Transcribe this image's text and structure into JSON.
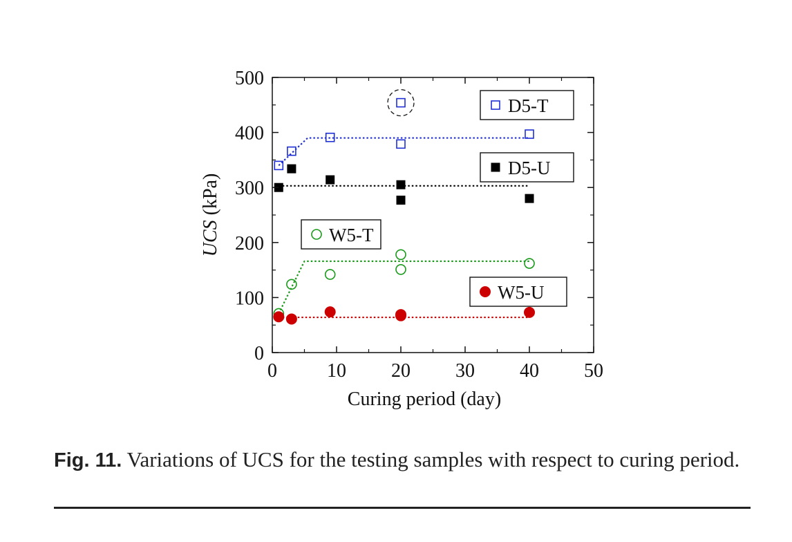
{
  "chart_data": {
    "type": "scatter",
    "xlabel": "Curing period (day)",
    "ylabel_italic": "UCS",
    "ylabel_unit": " (kPa)",
    "xlim": [
      0,
      50
    ],
    "ylim": [
      0,
      500
    ],
    "x_ticks": [
      0,
      10,
      20,
      30,
      40,
      50
    ],
    "y_ticks": [
      0,
      100,
      200,
      300,
      400,
      500
    ],
    "grid": false,
    "series": [
      {
        "name": "D5-T",
        "marker": "open-square",
        "color": "#1f2fd6",
        "points": [
          [
            1,
            340
          ],
          [
            3,
            366
          ],
          [
            9,
            391
          ],
          [
            20,
            379
          ],
          [
            20,
            454
          ],
          [
            40,
            397
          ]
        ],
        "trend": [
          [
            1,
            340
          ],
          [
            5.5,
            390
          ],
          [
            40,
            390
          ]
        ]
      },
      {
        "name": "D5-U",
        "marker": "filled-square",
        "color": "#000000",
        "points": [
          [
            1,
            300
          ],
          [
            3,
            334
          ],
          [
            9,
            314
          ],
          [
            20,
            305
          ],
          [
            20,
            277
          ],
          [
            40,
            280
          ]
        ],
        "trend": [
          [
            1,
            303
          ],
          [
            40,
            303
          ]
        ]
      },
      {
        "name": "W5-T",
        "marker": "open-circle",
        "color": "#1a9a1a",
        "points": [
          [
            1,
            71
          ],
          [
            3,
            124
          ],
          [
            9,
            142
          ],
          [
            20,
            178
          ],
          [
            20,
            151
          ],
          [
            40,
            162
          ]
        ],
        "trend": [
          [
            1,
            71
          ],
          [
            5,
            166
          ],
          [
            40,
            166
          ]
        ]
      },
      {
        "name": "W5-U",
        "marker": "filled-circle",
        "color": "#cc0000",
        "points": [
          [
            1,
            65
          ],
          [
            3,
            61
          ],
          [
            9,
            74
          ],
          [
            20,
            69
          ],
          [
            20,
            67
          ],
          [
            40,
            73
          ]
        ],
        "trend": [
          [
            1,
            64
          ],
          [
            40,
            64
          ]
        ]
      }
    ],
    "outlier": {
      "x": 20,
      "y": 454
    },
    "legend_placement": "inside-boxes-near-series"
  },
  "caption": {
    "label": "Fig. 11.",
    "text": " Variations of UCS for the testing samples with respect to curing period."
  }
}
